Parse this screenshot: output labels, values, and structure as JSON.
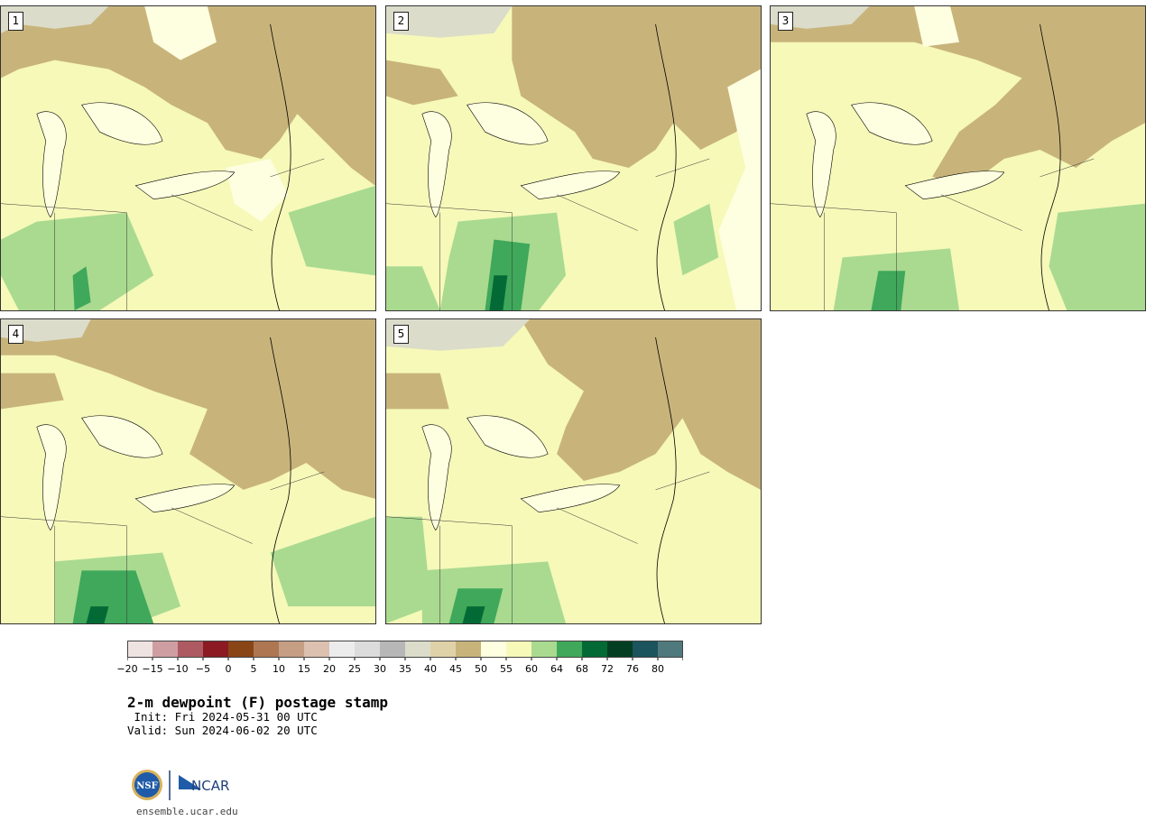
{
  "panels": [
    {
      "label": "1"
    },
    {
      "label": "2"
    },
    {
      "label": "3"
    },
    {
      "label": "4"
    },
    {
      "label": "5"
    }
  ],
  "colorbar": {
    "colors": [
      "#efe3e2",
      "#cf9ea2",
      "#ae5a62",
      "#8b1a22",
      "#8a4516",
      "#ae7752",
      "#c59e84",
      "#dcc0b0",
      "#ececec",
      "#dcdcdc",
      "#b7b7b7",
      "#dcdccb",
      "#e0d2a8",
      "#c8b47b",
      "#fefee0",
      "#f6f9b8",
      "#a9da90",
      "#3fa85a",
      "#046a35",
      "#043e22",
      "#1b545c",
      "#50797e"
    ],
    "ticks": [
      "−20",
      "−15",
      "−10",
      "−5",
      "0",
      "5",
      "10",
      "15",
      "20",
      "25",
      "30",
      "35",
      "40",
      "45",
      "50",
      "55",
      "60",
      "64",
      "68",
      "72",
      "76",
      "80"
    ]
  },
  "title": "2-m dewpoint (F) postage stamp",
  "init": " Init: Fri 2024-05-31 00 UTC",
  "valid": "Valid: Sun 2024-06-02 20 UTC",
  "logos": {
    "nsf": "NSF",
    "ncar": "NCAR"
  },
  "url": "ensemble.ucar.edu",
  "map_colors": {
    "tan": "#c8b47b",
    "light": "#fefee0",
    "yellow": "#f6f9b8",
    "green": "#a9da90",
    "midgreen": "#3fa85a",
    "dark": "#046a35",
    "gray": "#dcdccb"
  }
}
